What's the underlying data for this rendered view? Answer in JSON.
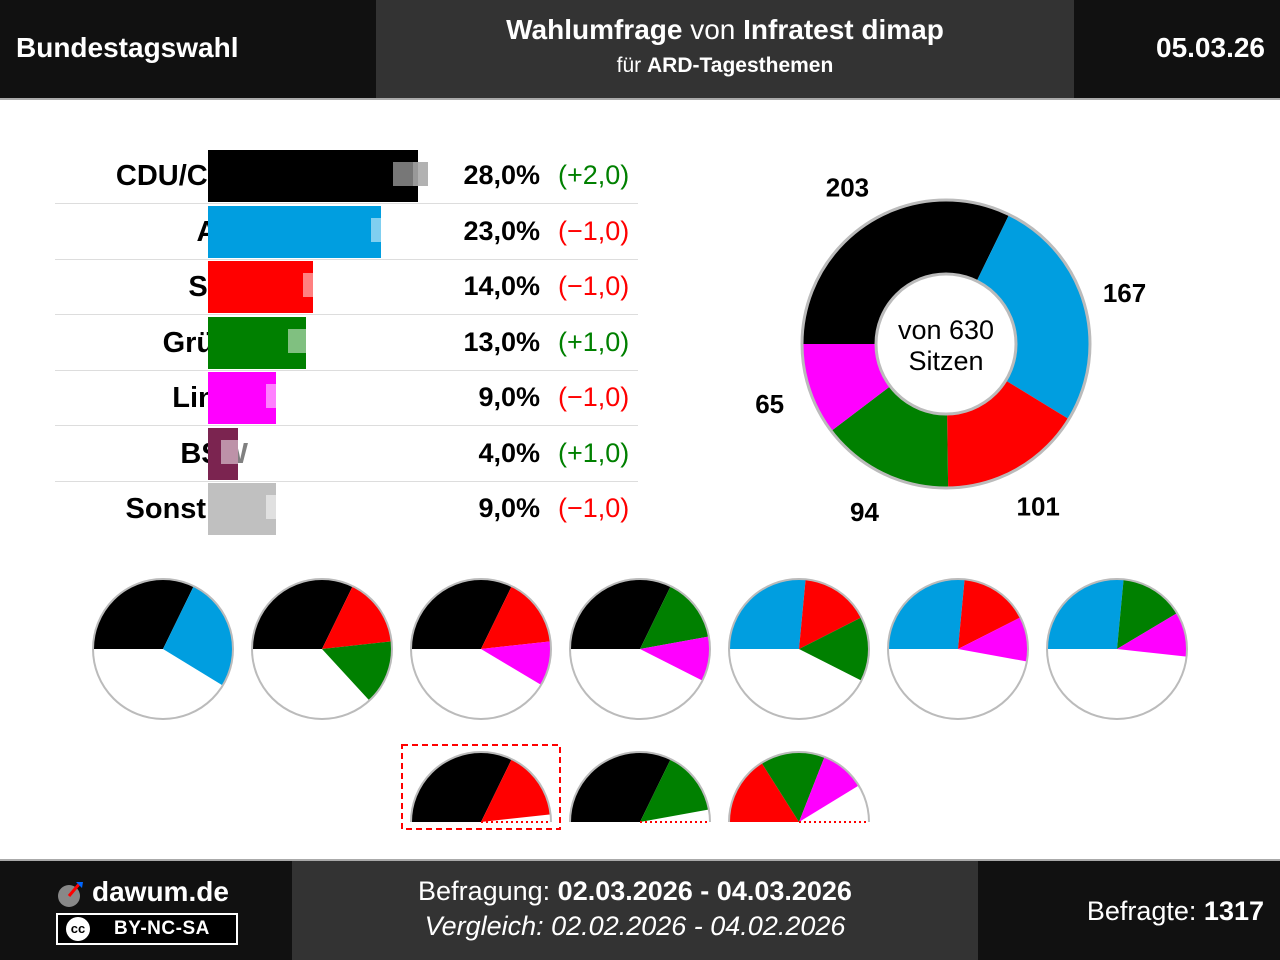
{
  "header": {
    "left_title": "Bundestagswahl",
    "line1_a": "Wahlumfrage",
    "line1_b": "von",
    "line1_c": "Infratest dimap",
    "line2_a": "für",
    "line2_b": "ARD-Tagesthemen",
    "date": "05.03.26"
  },
  "chart_data": [
    {
      "type": "bar",
      "categories": [
        "CDU/CSU",
        "AfD",
        "SPD",
        "Grüne",
        "Linke",
        "BSW",
        "Sonstige"
      ],
      "series": [
        {
          "values": [
            28.0,
            23.0,
            14.0,
            13.0,
            9.0,
            4.0,
            9.0
          ]
        },
        {
          "values": [
            26.0,
            24.0,
            15.0,
            12.0,
            10.0,
            3.0,
            10.0
          ]
        }
      ],
      "value_labels": [
        "28,0%",
        "23,0%",
        "14,0%",
        "13,0%",
        "9,0%",
        "4,0%",
        "9,0%"
      ],
      "change_labels": [
        "(+2,0)",
        "(−1,0)",
        "(−1,0)",
        "(+1,0)",
        "(−1,0)",
        "(+1,0)",
        "(−1,0)"
      ],
      "colors": [
        "#000000",
        "#009ee0",
        "#ff0000",
        "#008000",
        "#ff00ff",
        "#7b2450",
        "#c0c0c0"
      ],
      "change_colors": [
        "#008000",
        "#ff0000",
        "#ff0000",
        "#008000",
        "#ff0000",
        "#008000",
        "#ff0000"
      ],
      "xlim": [
        0,
        40
      ]
    },
    {
      "type": "pie",
      "center_label_1": "von 630",
      "center_label_2": "Sitzen",
      "categories": [
        "CDU/CSU",
        "AfD",
        "SPD",
        "Grüne",
        "Linke"
      ],
      "values": [
        203,
        167,
        101,
        94,
        65
      ],
      "labels": [
        "203",
        "167",
        "101",
        "94",
        "65"
      ],
      "colors": [
        "#000000",
        "#009ee0",
        "#ff0000",
        "#008000",
        "#ff00ff"
      ],
      "total": 630
    },
    {
      "type": "pie",
      "description_of_row": "coalition options",
      "coalitions": [
        {
          "parties": [
            203,
            167
          ],
          "colors": [
            "#000000",
            "#009ee0"
          ]
        },
        {
          "parties": [
            203,
            101,
            94
          ],
          "colors": [
            "#000000",
            "#ff0000",
            "#008000"
          ]
        },
        {
          "parties": [
            203,
            101,
            65
          ],
          "colors": [
            "#000000",
            "#ff0000",
            "#ff00ff"
          ]
        },
        {
          "parties": [
            203,
            94,
            65
          ],
          "colors": [
            "#000000",
            "#008000",
            "#ff00ff"
          ]
        },
        {
          "parties": [
            167,
            101,
            94
          ],
          "colors": [
            "#009ee0",
            "#ff0000",
            "#008000"
          ]
        },
        {
          "parties": [
            167,
            101,
            65
          ],
          "colors": [
            "#009ee0",
            "#ff0000",
            "#ff00ff"
          ]
        },
        {
          "parties": [
            167,
            94,
            65
          ],
          "colors": [
            "#009ee0",
            "#008000",
            "#ff00ff"
          ]
        },
        {
          "parties": [
            203,
            101
          ],
          "colors": [
            "#000000",
            "#ff0000"
          ],
          "half": true,
          "highlighted": true
        },
        {
          "parties": [
            203,
            94
          ],
          "colors": [
            "#000000",
            "#008000"
          ],
          "half": true
        },
        {
          "parties": [
            101,
            94,
            65
          ],
          "colors": [
            "#ff0000",
            "#008000",
            "#ff00ff"
          ],
          "half": true
        }
      ],
      "total": 630
    }
  ],
  "footer": {
    "logo": "dawum.de",
    "license": "BY-NC-SA",
    "license_cc": "cc",
    "befragung_label": "Befragung:",
    "befragung_value": "02.03.2026 - 04.03.2026",
    "vergleich": "Vergleich: 02.02.2026 - 04.02.2026",
    "befragte_label": "Befragte:",
    "befragte_value": "1317"
  }
}
